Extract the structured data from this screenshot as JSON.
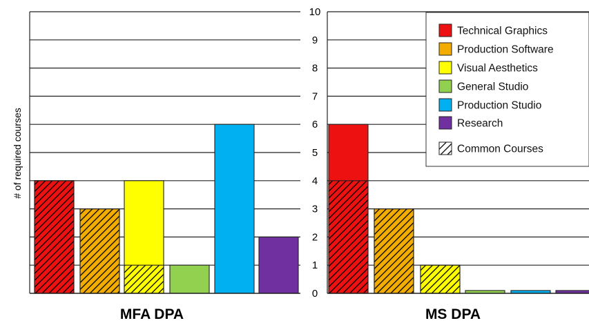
{
  "chart_data": {
    "type": "bar",
    "ylabel": "# of required courses",
    "ylim": [
      0,
      10
    ],
    "yticks": [
      "0",
      "1",
      "2",
      "3",
      "4",
      "5",
      "6",
      "7",
      "8",
      "9",
      "10"
    ],
    "grid": true,
    "legend_position": "top-right",
    "legend": [
      {
        "name": "Technical Graphics",
        "color": "#ee1111",
        "hatch": false
      },
      {
        "name": "Production Software",
        "color": "#f2ad00",
        "hatch": false
      },
      {
        "name": "Visual Aesthetics",
        "color": "#ffff00",
        "hatch": false
      },
      {
        "name": "General Studio",
        "color": "#92d050",
        "hatch": false
      },
      {
        "name": "Production Studio",
        "color": "#00b0f0",
        "hatch": false
      },
      {
        "name": "Research",
        "color": "#7030a0",
        "hatch": false
      },
      {
        "name": "Common Courses",
        "color": "#ffffff",
        "hatch": true
      }
    ],
    "panels": [
      {
        "title": "MFA DPA",
        "categories": [
          "Technical Graphics",
          "Production Software",
          "Visual Aesthetics",
          "General Studio",
          "Production Studio",
          "Research"
        ],
        "values": [
          4,
          3,
          4,
          1,
          6,
          2
        ],
        "common": [
          4,
          3,
          1,
          0,
          0,
          0
        ]
      },
      {
        "title": "MS DPA",
        "categories": [
          "Technical Graphics",
          "Production Software",
          "Visual Aesthetics",
          "General Studio",
          "Production Studio",
          "Research"
        ],
        "values": [
          6,
          3,
          1,
          0.1,
          0.1,
          0.1
        ],
        "common": [
          4,
          3,
          1,
          0,
          0,
          0
        ]
      }
    ]
  }
}
